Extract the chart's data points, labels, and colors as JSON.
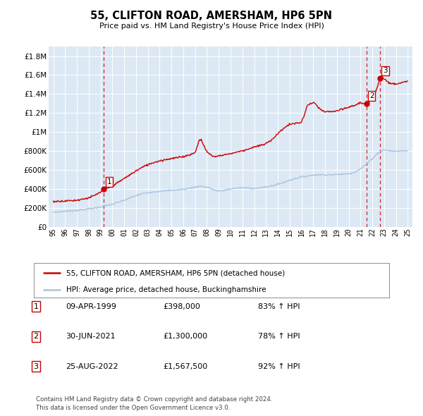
{
  "title": "55, CLIFTON ROAD, AMERSHAM, HP6 5PN",
  "subtitle": "Price paid vs. HM Land Registry's House Price Index (HPI)",
  "plot_bg_color": "#dce9f5",
  "red_color": "#cc0000",
  "blue_color": "#aac4e0",
  "legend_label_red": "55, CLIFTON ROAD, AMERSHAM, HP6 5PN (detached house)",
  "legend_label_blue": "HPI: Average price, detached house, Buckinghamshire",
  "transactions": [
    {
      "num": 1,
      "date": "09-APR-1999",
      "price": "£398,000",
      "pct": "83% ↑ HPI",
      "x_year": 1999.27,
      "y_val": 398000
    },
    {
      "num": 2,
      "date": "30-JUN-2021",
      "price": "£1,300,000",
      "pct": "78% ↑ HPI",
      "x_year": 2021.5,
      "y_val": 1300000
    },
    {
      "num": 3,
      "date": "25-AUG-2022",
      "price": "£1,567,500",
      "pct": "92% ↑ HPI",
      "x_year": 2022.65,
      "y_val": 1567500
    }
  ],
  "footer": "Contains HM Land Registry data © Crown copyright and database right 2024.\nThis data is licensed under the Open Government Licence v3.0.",
  "ylim": [
    0,
    1900000
  ],
  "xlim_start": 1994.6,
  "xlim_end": 2025.4,
  "yticks": [
    0,
    200000,
    400000,
    600000,
    800000,
    1000000,
    1200000,
    1400000,
    1600000,
    1800000
  ],
  "ytick_labels": [
    "£0",
    "£200K",
    "£400K",
    "£600K",
    "£800K",
    "£1M",
    "£1.2M",
    "£1.4M",
    "£1.6M",
    "£1.8M"
  ],
  "xtick_years": [
    1995,
    1996,
    1997,
    1998,
    1999,
    2000,
    2001,
    2002,
    2003,
    2004,
    2005,
    2006,
    2007,
    2008,
    2009,
    2010,
    2011,
    2012,
    2013,
    2014,
    2015,
    2016,
    2017,
    2018,
    2019,
    2020,
    2021,
    2022,
    2023,
    2024,
    2025
  ],
  "hpi_anchors": [
    [
      1995.0,
      152000
    ],
    [
      1995.5,
      158000
    ],
    [
      1996.0,
      163000
    ],
    [
      1996.5,
      168000
    ],
    [
      1997.0,
      173000
    ],
    [
      1997.5,
      180000
    ],
    [
      1998.0,
      188000
    ],
    [
      1998.5,
      198000
    ],
    [
      1999.0,
      210000
    ],
    [
      1999.5,
      222000
    ],
    [
      2000.0,
      238000
    ],
    [
      2000.5,
      258000
    ],
    [
      2001.0,
      278000
    ],
    [
      2001.5,
      305000
    ],
    [
      2002.0,
      328000
    ],
    [
      2002.5,
      348000
    ],
    [
      2003.0,
      360000
    ],
    [
      2003.5,
      368000
    ],
    [
      2004.0,
      374000
    ],
    [
      2004.5,
      380000
    ],
    [
      2005.0,
      385000
    ],
    [
      2005.5,
      388000
    ],
    [
      2006.0,
      395000
    ],
    [
      2006.5,
      405000
    ],
    [
      2007.0,
      418000
    ],
    [
      2007.5,
      428000
    ],
    [
      2008.0,
      418000
    ],
    [
      2008.5,
      392000
    ],
    [
      2009.0,
      375000
    ],
    [
      2009.5,
      385000
    ],
    [
      2010.0,
      398000
    ],
    [
      2010.5,
      408000
    ],
    [
      2011.0,
      410000
    ],
    [
      2011.5,
      408000
    ],
    [
      2012.0,
      405000
    ],
    [
      2012.5,
      410000
    ],
    [
      2013.0,
      418000
    ],
    [
      2013.5,
      430000
    ],
    [
      2014.0,
      448000
    ],
    [
      2014.5,
      468000
    ],
    [
      2015.0,
      490000
    ],
    [
      2015.5,
      510000
    ],
    [
      2016.0,
      525000
    ],
    [
      2016.5,
      535000
    ],
    [
      2017.0,
      545000
    ],
    [
      2017.5,
      548000
    ],
    [
      2018.0,
      548000
    ],
    [
      2018.5,
      548000
    ],
    [
      2019.0,
      550000
    ],
    [
      2019.5,
      555000
    ],
    [
      2020.0,
      558000
    ],
    [
      2020.5,
      575000
    ],
    [
      2021.0,
      610000
    ],
    [
      2021.5,
      660000
    ],
    [
      2022.0,
      720000
    ],
    [
      2022.5,
      780000
    ],
    [
      2023.0,
      810000
    ],
    [
      2023.5,
      800000
    ],
    [
      2024.0,
      795000
    ],
    [
      2024.5,
      800000
    ],
    [
      2025.0,
      802000
    ]
  ],
  "red_anchors": [
    [
      1995.0,
      265000
    ],
    [
      1995.5,
      270000
    ],
    [
      1996.0,
      272000
    ],
    [
      1996.5,
      275000
    ],
    [
      1997.0,
      280000
    ],
    [
      1997.5,
      292000
    ],
    [
      1998.0,
      305000
    ],
    [
      1998.5,
      330000
    ],
    [
      1999.0,
      365000
    ],
    [
      1999.27,
      398000
    ],
    [
      1999.5,
      405000
    ],
    [
      2000.0,
      430000
    ],
    [
      2000.5,
      468000
    ],
    [
      2001.0,
      510000
    ],
    [
      2001.5,
      548000
    ],
    [
      2002.0,
      590000
    ],
    [
      2002.5,
      625000
    ],
    [
      2003.0,
      655000
    ],
    [
      2003.5,
      678000
    ],
    [
      2004.0,
      695000
    ],
    [
      2004.5,
      708000
    ],
    [
      2005.0,
      720000
    ],
    [
      2005.5,
      728000
    ],
    [
      2006.0,
      740000
    ],
    [
      2006.5,
      758000
    ],
    [
      2007.0,
      780000
    ],
    [
      2007.3,
      900000
    ],
    [
      2007.5,
      920000
    ],
    [
      2007.8,
      840000
    ],
    [
      2008.0,
      790000
    ],
    [
      2008.3,
      760000
    ],
    [
      2008.5,
      745000
    ],
    [
      2008.8,
      740000
    ],
    [
      2009.0,
      748000
    ],
    [
      2009.5,
      760000
    ],
    [
      2010.0,
      770000
    ],
    [
      2010.5,
      788000
    ],
    [
      2011.0,
      800000
    ],
    [
      2011.5,
      820000
    ],
    [
      2012.0,
      840000
    ],
    [
      2012.5,
      855000
    ],
    [
      2013.0,
      875000
    ],
    [
      2013.5,
      920000
    ],
    [
      2014.0,
      980000
    ],
    [
      2014.5,
      1040000
    ],
    [
      2015.0,
      1080000
    ],
    [
      2015.5,
      1090000
    ],
    [
      2016.0,
      1100000
    ],
    [
      2016.2,
      1160000
    ],
    [
      2016.5,
      1280000
    ],
    [
      2017.0,
      1310000
    ],
    [
      2017.2,
      1290000
    ],
    [
      2017.5,
      1250000
    ],
    [
      2017.8,
      1220000
    ],
    [
      2018.0,
      1210000
    ],
    [
      2018.5,
      1215000
    ],
    [
      2019.0,
      1220000
    ],
    [
      2019.5,
      1240000
    ],
    [
      2020.0,
      1260000
    ],
    [
      2020.5,
      1280000
    ],
    [
      2021.0,
      1310000
    ],
    [
      2021.3,
      1295000
    ],
    [
      2021.5,
      1300000
    ],
    [
      2021.8,
      1320000
    ],
    [
      2022.0,
      1360000
    ],
    [
      2022.3,
      1430000
    ],
    [
      2022.65,
      1567500
    ],
    [
      2022.8,
      1590000
    ],
    [
      2023.0,
      1560000
    ],
    [
      2023.3,
      1530000
    ],
    [
      2023.5,
      1510000
    ],
    [
      2024.0,
      1510000
    ],
    [
      2024.5,
      1520000
    ],
    [
      2025.0,
      1530000
    ]
  ]
}
